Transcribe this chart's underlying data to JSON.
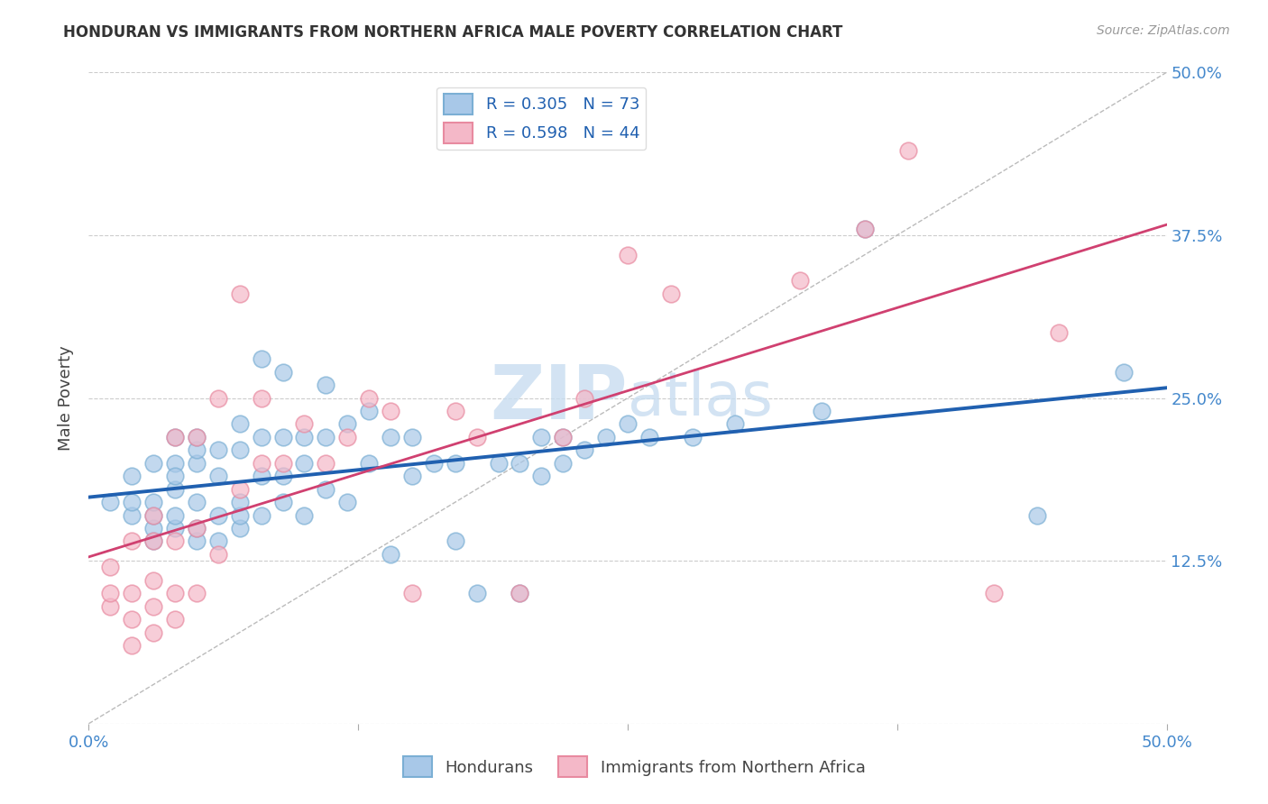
{
  "title": "HONDURAN VS IMMIGRANTS FROM NORTHERN AFRICA MALE POVERTY CORRELATION CHART",
  "source": "Source: ZipAtlas.com",
  "ylabel": "Male Poverty",
  "xlim": [
    0.0,
    0.5
  ],
  "ylim": [
    0.0,
    0.5
  ],
  "blue_R": 0.305,
  "blue_N": 73,
  "pink_R": 0.598,
  "pink_N": 44,
  "blue_scatter_color": "#a8c8e8",
  "pink_scatter_color": "#f4b8c8",
  "blue_edge_color": "#7bafd4",
  "pink_edge_color": "#e88aa0",
  "blue_line_color": "#2060b0",
  "pink_line_color": "#d04070",
  "watermark_color": "#c8ddf0",
  "legend_label_blue": "Hondurans",
  "legend_label_pink": "Immigrants from Northern Africa",
  "blue_x": [
    0.01,
    0.02,
    0.02,
    0.02,
    0.03,
    0.03,
    0.03,
    0.03,
    0.03,
    0.04,
    0.04,
    0.04,
    0.04,
    0.04,
    0.04,
    0.05,
    0.05,
    0.05,
    0.05,
    0.05,
    0.05,
    0.06,
    0.06,
    0.06,
    0.06,
    0.07,
    0.07,
    0.07,
    0.07,
    0.07,
    0.08,
    0.08,
    0.08,
    0.08,
    0.09,
    0.09,
    0.09,
    0.09,
    0.1,
    0.1,
    0.1,
    0.11,
    0.11,
    0.11,
    0.12,
    0.12,
    0.13,
    0.13,
    0.14,
    0.14,
    0.15,
    0.15,
    0.16,
    0.17,
    0.17,
    0.18,
    0.19,
    0.2,
    0.2,
    0.21,
    0.21,
    0.22,
    0.22,
    0.23,
    0.24,
    0.25,
    0.26,
    0.28,
    0.3,
    0.34,
    0.36,
    0.44,
    0.48
  ],
  "blue_y": [
    0.17,
    0.16,
    0.17,
    0.19,
    0.14,
    0.15,
    0.16,
    0.17,
    0.2,
    0.15,
    0.16,
    0.18,
    0.2,
    0.22,
    0.19,
    0.14,
    0.15,
    0.17,
    0.2,
    0.21,
    0.22,
    0.14,
    0.16,
    0.19,
    0.21,
    0.15,
    0.16,
    0.17,
    0.21,
    0.23,
    0.16,
    0.19,
    0.22,
    0.28,
    0.17,
    0.19,
    0.22,
    0.27,
    0.16,
    0.2,
    0.22,
    0.18,
    0.22,
    0.26,
    0.17,
    0.23,
    0.2,
    0.24,
    0.13,
    0.22,
    0.19,
    0.22,
    0.2,
    0.14,
    0.2,
    0.1,
    0.2,
    0.1,
    0.2,
    0.19,
    0.22,
    0.2,
    0.22,
    0.21,
    0.22,
    0.23,
    0.22,
    0.22,
    0.23,
    0.24,
    0.38,
    0.16,
    0.27
  ],
  "pink_x": [
    0.01,
    0.01,
    0.01,
    0.02,
    0.02,
    0.02,
    0.02,
    0.03,
    0.03,
    0.03,
    0.03,
    0.03,
    0.04,
    0.04,
    0.04,
    0.04,
    0.05,
    0.05,
    0.05,
    0.06,
    0.06,
    0.07,
    0.07,
    0.08,
    0.08,
    0.09,
    0.1,
    0.11,
    0.12,
    0.13,
    0.14,
    0.15,
    0.17,
    0.18,
    0.2,
    0.22,
    0.23,
    0.25,
    0.27,
    0.33,
    0.36,
    0.38,
    0.42,
    0.45
  ],
  "pink_y": [
    0.09,
    0.1,
    0.12,
    0.06,
    0.08,
    0.1,
    0.14,
    0.07,
    0.09,
    0.11,
    0.14,
    0.16,
    0.08,
    0.1,
    0.14,
    0.22,
    0.1,
    0.15,
    0.22,
    0.13,
    0.25,
    0.18,
    0.33,
    0.2,
    0.25,
    0.2,
    0.23,
    0.2,
    0.22,
    0.25,
    0.24,
    0.1,
    0.24,
    0.22,
    0.1,
    0.22,
    0.25,
    0.36,
    0.33,
    0.34,
    0.38,
    0.44,
    0.1,
    0.3
  ]
}
